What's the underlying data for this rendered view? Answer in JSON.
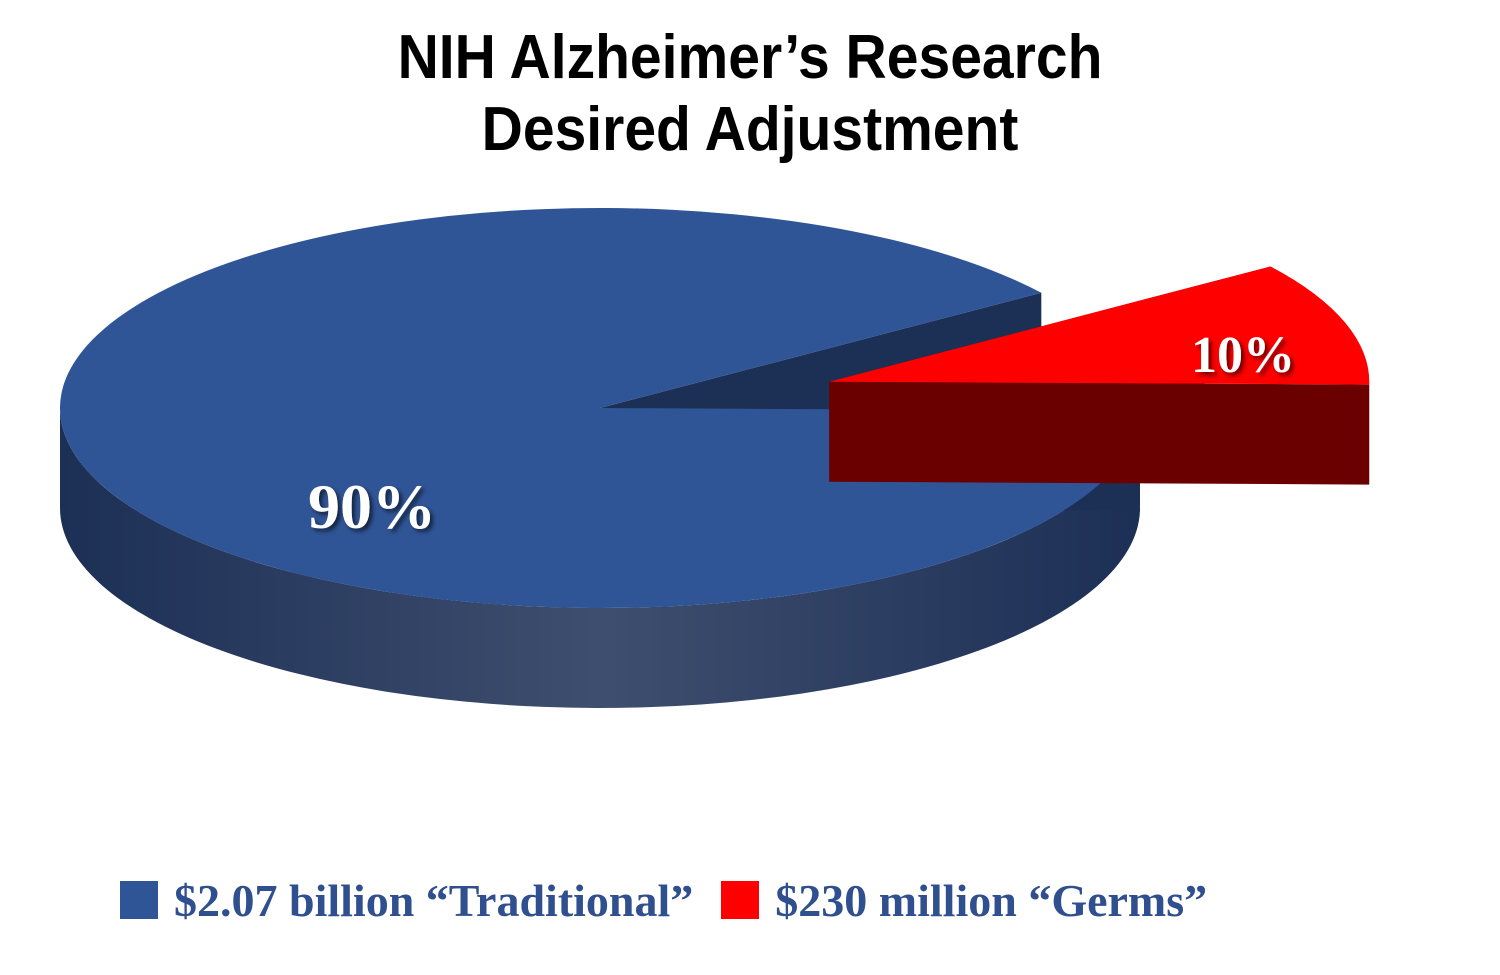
{
  "chart_data": {
    "type": "pie",
    "title_lines": [
      "NIH Alzheimer’s Research",
      "Desired Adjustment"
    ],
    "slices": [
      {
        "name": "$2.07 billion “Traditional”",
        "value": 90,
        "label": "90%",
        "color": "#2f5597",
        "side_color": "#1c2f55"
      },
      {
        "name": "$230 million “Germs”",
        "value": 10,
        "label": "10%",
        "color": "#ff0000",
        "side_color": "#6b0000"
      }
    ],
    "legend_position": "bottom",
    "style": "3d-exploded"
  }
}
